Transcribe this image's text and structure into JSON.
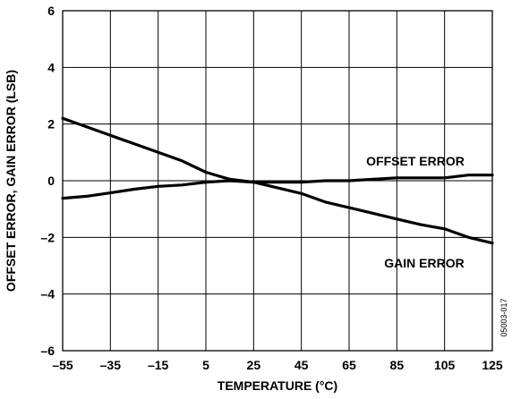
{
  "chart_data": {
    "type": "line",
    "xlabel": "TEMPERATURE (°C)",
    "ylabel": "OFFSET ERROR, GAIN ERROR (LSB)",
    "xlim": [
      -55,
      125
    ],
    "ylim": [
      -6,
      6
    ],
    "x_ticks": [
      -55,
      -35,
      -15,
      5,
      25,
      45,
      65,
      85,
      105,
      125
    ],
    "x_tick_labels": [
      "–55",
      "–35",
      "–15",
      "5",
      "25",
      "45",
      "65",
      "85",
      "105",
      "125"
    ],
    "y_ticks": [
      6,
      4,
      2,
      0,
      -2,
      -4,
      -6
    ],
    "y_tick_labels": [
      "6",
      "4",
      "2",
      "0",
      "–2",
      "–4",
      "–6"
    ],
    "grid": true,
    "figure_id": "05003-017",
    "series": [
      {
        "name": "OFFSET ERROR",
        "x": [
          -55,
          -45,
          -35,
          -25,
          -15,
          -5,
          5,
          15,
          25,
          35,
          45,
          55,
          65,
          75,
          85,
          95,
          105,
          115,
          125
        ],
        "y": [
          -0.62,
          -0.55,
          -0.43,
          -0.3,
          -0.2,
          -0.15,
          -0.05,
          0.0,
          -0.05,
          -0.05,
          -0.05,
          0.0,
          0.0,
          0.05,
          0.1,
          0.1,
          0.1,
          0.2,
          0.2
        ]
      },
      {
        "name": "GAIN ERROR",
        "x": [
          -55,
          -45,
          -35,
          -25,
          -15,
          -5,
          5,
          15,
          25,
          35,
          45,
          55,
          65,
          75,
          85,
          95,
          105,
          115,
          125
        ],
        "y": [
          2.2,
          1.9,
          1.6,
          1.3,
          1.0,
          0.7,
          0.3,
          0.05,
          -0.05,
          -0.25,
          -0.45,
          -0.75,
          -0.95,
          -1.15,
          -1.35,
          -1.55,
          -1.7,
          -2.0,
          -2.2
        ]
      }
    ]
  }
}
